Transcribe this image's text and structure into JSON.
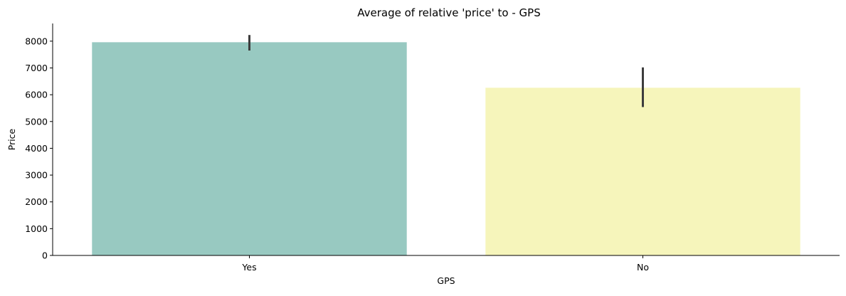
{
  "chart_data": {
    "type": "bar",
    "title": "Average of relative 'price' to - GPS",
    "xlabel": "GPS",
    "ylabel": "Price",
    "categories": [
      "Yes",
      "No"
    ],
    "values": [
      7960,
      6260
    ],
    "error_bars": [
      [
        7650,
        8230
      ],
      [
        5540,
        7020
      ]
    ],
    "colors": [
      "#98c9c1",
      "#f6f5bb"
    ],
    "ylim": [
      0,
      8660
    ],
    "yticks": [
      0,
      1000,
      2000,
      3000,
      4000,
      5000,
      6000,
      7000,
      8000
    ],
    "grid": false,
    "legend": "none"
  }
}
